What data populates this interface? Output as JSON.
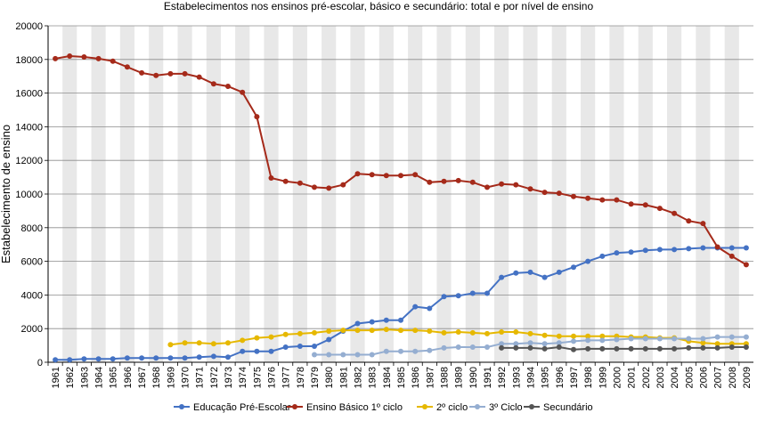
{
  "chart_data": {
    "type": "line",
    "title": "Estabelecimentos nos ensinos pré-escolar, básico e secundário: total e por nível de ensino",
    "ylabel": "Estabelecimento de ensino",
    "xlabel": "",
    "ylim": [
      0,
      20000
    ],
    "yticks": [
      0,
      2000,
      4000,
      6000,
      8000,
      10000,
      12000,
      14000,
      16000,
      18000,
      20000
    ],
    "grid": true,
    "legend_position": "bottom",
    "x": [
      "1961",
      "1962",
      "1963",
      "1964",
      "1965",
      "1966",
      "1967",
      "1968",
      "1969",
      "1970",
      "1971",
      "1972",
      "1973",
      "1974",
      "1975",
      "1976",
      "1977",
      "1978",
      "1979",
      "1980",
      "1981",
      "1982",
      "1983",
      "1984",
      "1985",
      "1986",
      "1987",
      "1988",
      "1989",
      "1990",
      "1991",
      "1992",
      "1993",
      "1994",
      "1995",
      "1996",
      "1997",
      "1998",
      "1999",
      "2000",
      "2001",
      "2002",
      "2003",
      "2004",
      "2005",
      "2006",
      "2007",
      "2008",
      "2009"
    ],
    "series": [
      {
        "name": "Educação Pré-Escolar",
        "color": "#4472c4",
        "values": [
          150,
          150,
          200,
          200,
          200,
          250,
          250,
          250,
          250,
          250,
          300,
          350,
          300,
          650,
          650,
          650,
          900,
          950,
          950,
          1350,
          1850,
          2300,
          2400,
          2500,
          2500,
          3300,
          3200,
          3900,
          3950,
          4100,
          4100,
          5050,
          5300,
          5350,
          5050,
          5350,
          5650,
          6000,
          6300,
          6500,
          6550,
          6650,
          6700,
          6700,
          6750,
          6800,
          6800,
          6800,
          6800
        ]
      },
      {
        "name": "Ensino Básico 1º ciclo",
        "color": "#a52a1a",
        "values": [
          18050,
          18200,
          18150,
          18050,
          17900,
          17550,
          17200,
          17050,
          17150,
          17150,
          16950,
          16550,
          16400,
          16050,
          14600,
          10950,
          10750,
          10650,
          10400,
          10350,
          10550,
          11200,
          11150,
          11100,
          11100,
          11150,
          10700,
          10750,
          10800,
          10700,
          10400,
          10600,
          10550,
          10300,
          10100,
          10050,
          9850,
          9750,
          9650,
          9650,
          9400,
          9350,
          9150,
          8850,
          8400,
          8250,
          6850,
          6300,
          5800
        ]
      },
      {
        "name": "2º ciclo",
        "color": "#e6b800",
        "values": [
          null,
          null,
          null,
          null,
          null,
          null,
          null,
          null,
          1050,
          1150,
          1150,
          1100,
          1150,
          1300,
          1450,
          1500,
          1650,
          1700,
          1750,
          1850,
          1900,
          1900,
          1900,
          1950,
          1900,
          1900,
          1850,
          1750,
          1800,
          1750,
          1700,
          1800,
          1800,
          1700,
          1600,
          1550,
          1550,
          1550,
          1550,
          1550,
          1500,
          1500,
          1450,
          1450,
          1250,
          1150,
          1100,
          1100,
          1100
        ]
      },
      {
        "name": "3º Ciclo",
        "color": "#95aed1",
        "values": [
          null,
          null,
          null,
          null,
          null,
          null,
          null,
          null,
          null,
          null,
          null,
          null,
          null,
          null,
          null,
          null,
          null,
          null,
          450,
          450,
          450,
          450,
          450,
          650,
          650,
          650,
          700,
          850,
          900,
          900,
          900,
          1100,
          1100,
          1150,
          1100,
          1150,
          1250,
          1300,
          1300,
          1350,
          1400,
          1400,
          1400,
          1400,
          1400,
          1400,
          1500,
          1500,
          1500
        ]
      },
      {
        "name": "Secundário",
        "color": "#555555",
        "values": [
          null,
          null,
          null,
          null,
          null,
          null,
          null,
          null,
          null,
          null,
          null,
          null,
          null,
          null,
          null,
          null,
          null,
          null,
          null,
          null,
          null,
          null,
          null,
          null,
          null,
          null,
          null,
          null,
          null,
          null,
          null,
          850,
          850,
          850,
          800,
          900,
          750,
          800,
          800,
          800,
          800,
          800,
          800,
          800,
          850,
          850,
          850,
          900,
          900
        ]
      }
    ]
  }
}
